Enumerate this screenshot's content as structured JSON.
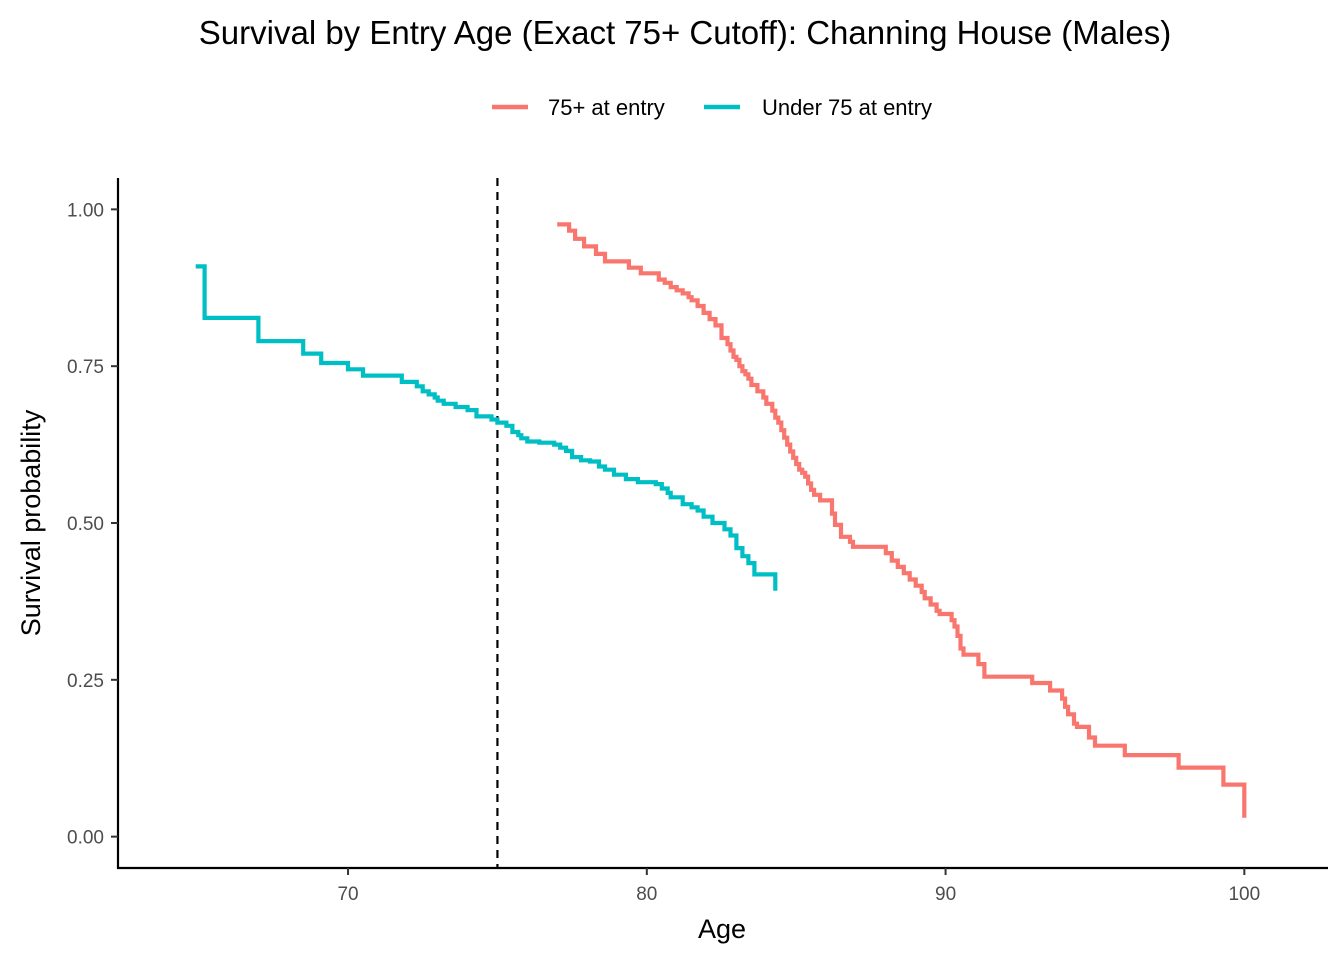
{
  "chart_data": {
    "type": "line",
    "title": "Survival by Entry Age (Exact 75+ Cutoff): Channing House (Males)",
    "xlabel": "Age",
    "ylabel": "Survival probability",
    "xlim": [
      62.3,
      102.8
    ],
    "ylim": [
      -0.05,
      1.05
    ],
    "x_ticks": [
      70,
      80,
      90,
      100
    ],
    "x_tick_labels": [
      "70",
      "80",
      "90",
      "100"
    ],
    "y_ticks": [
      0,
      0.25,
      0.5,
      0.75,
      1
    ],
    "y_tick_labels": [
      "0.00",
      "0.25",
      "0.50",
      "0.75",
      "1.00"
    ],
    "grid": false,
    "legend_position": "top",
    "cutoff_line": {
      "x": 75,
      "style": "dashed"
    },
    "series": [
      {
        "name": "75+ at entry",
        "color": "#F8766D",
        "step_x": [
          77.0,
          77.4,
          77.6,
          77.9,
          78.3,
          78.6,
          79.0,
          79.4,
          79.8,
          80.1,
          80.4,
          80.6,
          80.8,
          81.0,
          81.2,
          81.4,
          81.5,
          81.7,
          81.9,
          82.1,
          82.3,
          82.5,
          82.7,
          82.8,
          82.9,
          83.0,
          83.1,
          83.2,
          83.3,
          83.4,
          83.5,
          83.7,
          83.9,
          84.0,
          84.2,
          84.3,
          84.4,
          84.5,
          84.6,
          84.7,
          84.8,
          84.9,
          85.0,
          85.1,
          85.2,
          85.3,
          85.4,
          85.5,
          85.6,
          85.8,
          85.9,
          86.0,
          86.1,
          86.2,
          86.3,
          86.5,
          86.8,
          86.9,
          87.0,
          87.1,
          87.2,
          87.4,
          88.0,
          88.2,
          88.4,
          88.6,
          88.8,
          89.0,
          89.2,
          89.3,
          89.5,
          89.7,
          89.8,
          90.2,
          90.3,
          90.4,
          90.5,
          90.6,
          91.1,
          91.3,
          92.9,
          93.5,
          93.9,
          94.0,
          94.1,
          94.3,
          94.4,
          94.8,
          95.0,
          96.0,
          97.8,
          99.3,
          100.0
        ],
        "step_y": [
          0.976,
          0.966,
          0.953,
          0.941,
          0.929,
          0.917,
          0.917,
          0.907,
          0.898,
          0.898,
          0.888,
          0.883,
          0.876,
          0.871,
          0.866,
          0.86,
          0.855,
          0.846,
          0.835,
          0.825,
          0.815,
          0.795,
          0.785,
          0.775,
          0.765,
          0.76,
          0.75,
          0.742,
          0.737,
          0.73,
          0.72,
          0.71,
          0.7,
          0.69,
          0.679,
          0.668,
          0.66,
          0.648,
          0.636,
          0.625,
          0.614,
          0.604,
          0.594,
          0.585,
          0.58,
          0.574,
          0.563,
          0.553,
          0.545,
          0.536,
          0.536,
          0.536,
          0.536,
          0.515,
          0.497,
          0.478,
          0.47,
          0.462,
          0.462,
          0.462,
          0.462,
          0.462,
          0.452,
          0.44,
          0.43,
          0.42,
          0.41,
          0.4,
          0.39,
          0.38,
          0.37,
          0.36,
          0.355,
          0.345,
          0.335,
          0.32,
          0.3,
          0.29,
          0.275,
          0.255,
          0.245,
          0.233,
          0.22,
          0.207,
          0.195,
          0.18,
          0.175,
          0.158,
          0.145,
          0.13,
          0.11,
          0.083,
          0.03
        ]
      },
      {
        "name": "Under 75 at entry",
        "color": "#00BFC4",
        "step_x": [
          64.9,
          65.2,
          67.0,
          68.5,
          69.1,
          70.0,
          70.5,
          71.8,
          72.3,
          72.5,
          72.7,
          72.9,
          73.0,
          73.2,
          73.6,
          74.0,
          74.3,
          74.8,
          75.0,
          75.3,
          75.5,
          75.7,
          75.8,
          76.0,
          76.4,
          76.9,
          77.1,
          77.3,
          77.5,
          77.8,
          78.1,
          78.4,
          78.6,
          78.9,
          79.3,
          79.7,
          80.0,
          80.3,
          80.5,
          80.7,
          80.8,
          81.2,
          81.5,
          81.7,
          81.9,
          82.2,
          82.6,
          82.8,
          83.0,
          83.2,
          83.4,
          83.6,
          84.3
        ],
        "step_y": [
          0.909,
          0.827,
          0.79,
          0.77,
          0.755,
          0.745,
          0.735,
          0.725,
          0.718,
          0.71,
          0.705,
          0.7,
          0.695,
          0.69,
          0.685,
          0.68,
          0.67,
          0.665,
          0.66,
          0.655,
          0.645,
          0.64,
          0.635,
          0.63,
          0.628,
          0.625,
          0.62,
          0.615,
          0.605,
          0.6,
          0.598,
          0.59,
          0.585,
          0.577,
          0.57,
          0.565,
          0.565,
          0.562,
          0.555,
          0.548,
          0.541,
          0.53,
          0.525,
          0.52,
          0.51,
          0.5,
          0.49,
          0.48,
          0.46,
          0.447,
          0.436,
          0.418,
          0.392
        ]
      }
    ]
  }
}
